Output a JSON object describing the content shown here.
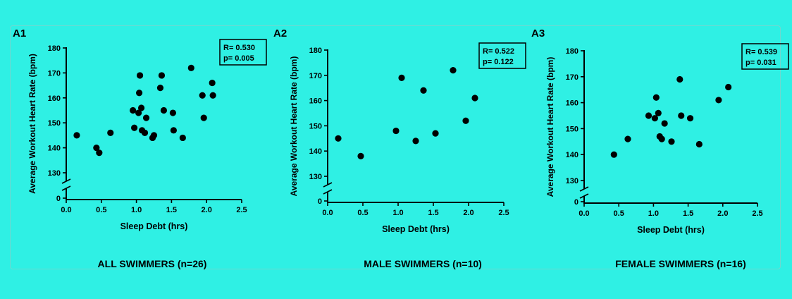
{
  "chart_data": [
    {
      "type": "scatter",
      "panel_label": "A1",
      "caption": "ALL SWIMMERS (n=26)",
      "xlabel": "Sleep Debt (hrs)",
      "ylabel": "Average Workout Heart Rate (bpm)",
      "xlim": [
        0,
        2.5
      ],
      "ylim": [
        130,
        180
      ],
      "y_axis_break": true,
      "y_ticks": [
        "0",
        "130",
        "140",
        "150",
        "160",
        "170",
        "180"
      ],
      "x_ticks": [
        "0.0",
        "0.5",
        "1.0",
        "1.5",
        "2.0",
        "2.5"
      ],
      "stats": [
        "R= 0.530",
        "p= 0.005"
      ],
      "points": [
        {
          "x": 0.15,
          "y": 145
        },
        {
          "x": 0.43,
          "y": 140
        },
        {
          "x": 0.47,
          "y": 138
        },
        {
          "x": 0.63,
          "y": 146
        },
        {
          "x": 0.95,
          "y": 155
        },
        {
          "x": 0.97,
          "y": 148
        },
        {
          "x": 1.03,
          "y": 154
        },
        {
          "x": 1.04,
          "y": 162
        },
        {
          "x": 1.05,
          "y": 169
        },
        {
          "x": 1.07,
          "y": 156
        },
        {
          "x": 1.08,
          "y": 147
        },
        {
          "x": 1.12,
          "y": 146
        },
        {
          "x": 1.14,
          "y": 152
        },
        {
          "x": 1.23,
          "y": 144
        },
        {
          "x": 1.25,
          "y": 145
        },
        {
          "x": 1.34,
          "y": 164
        },
        {
          "x": 1.36,
          "y": 169
        },
        {
          "x": 1.39,
          "y": 155
        },
        {
          "x": 1.52,
          "y": 154
        },
        {
          "x": 1.53,
          "y": 147
        },
        {
          "x": 1.66,
          "y": 144
        },
        {
          "x": 1.78,
          "y": 172
        },
        {
          "x": 1.94,
          "y": 161
        },
        {
          "x": 1.96,
          "y": 152
        },
        {
          "x": 2.08,
          "y": 166
        },
        {
          "x": 2.09,
          "y": 161
        }
      ]
    },
    {
      "type": "scatter",
      "panel_label": "A2",
      "caption": "MALE SWIMMERS (n=10)",
      "xlabel": "Sleep Debt (hrs)",
      "ylabel": "Average Workout Heart Rate (bpm)",
      "xlim": [
        0,
        2.5
      ],
      "ylim": [
        130,
        180
      ],
      "y_axis_break": true,
      "y_ticks": [
        "0",
        "130",
        "140",
        "150",
        "160",
        "170",
        "180"
      ],
      "x_ticks": [
        "0.0",
        "0.5",
        "1.0",
        "1.5",
        "2.0",
        "2.5"
      ],
      "stats": [
        "R= 0.522",
        "p= 0.122"
      ],
      "points": [
        {
          "x": 0.15,
          "y": 145
        },
        {
          "x": 0.47,
          "y": 138
        },
        {
          "x": 0.97,
          "y": 148
        },
        {
          "x": 1.05,
          "y": 169
        },
        {
          "x": 1.25,
          "y": 144
        },
        {
          "x": 1.36,
          "y": 164
        },
        {
          "x": 1.53,
          "y": 147
        },
        {
          "x": 1.78,
          "y": 172
        },
        {
          "x": 1.96,
          "y": 152
        },
        {
          "x": 2.09,
          "y": 161
        }
      ]
    },
    {
      "type": "scatter",
      "panel_label": "A3",
      "caption": "FEMALE SWIMMERS (n=16)",
      "xlabel": "Sleep Debt (hrs)",
      "ylabel": "Average Workout Heart Rate (bpm)",
      "xlim": [
        0,
        2.5
      ],
      "ylim": [
        130,
        180
      ],
      "y_axis_break": true,
      "y_ticks": [
        "0",
        "130",
        "140",
        "150",
        "160",
        "170",
        "180"
      ],
      "x_ticks": [
        "0.0",
        "0.5",
        "1.0",
        "1.5",
        "2.0",
        "2.5"
      ],
      "stats": [
        "R= 0.539",
        "p= 0.031"
      ],
      "points": [
        {
          "x": 0.43,
          "y": 140
        },
        {
          "x": 0.63,
          "y": 146
        },
        {
          "x": 0.93,
          "y": 155
        },
        {
          "x": 1.02,
          "y": 154
        },
        {
          "x": 1.04,
          "y": 162
        },
        {
          "x": 1.07,
          "y": 156
        },
        {
          "x": 1.09,
          "y": 147
        },
        {
          "x": 1.12,
          "y": 146
        },
        {
          "x": 1.16,
          "y": 152
        },
        {
          "x": 1.26,
          "y": 145
        },
        {
          "x": 1.38,
          "y": 169
        },
        {
          "x": 1.4,
          "y": 155
        },
        {
          "x": 1.53,
          "y": 154
        },
        {
          "x": 1.66,
          "y": 144
        },
        {
          "x": 1.94,
          "y": 161
        },
        {
          "x": 2.08,
          "y": 166
        }
      ]
    }
  ]
}
